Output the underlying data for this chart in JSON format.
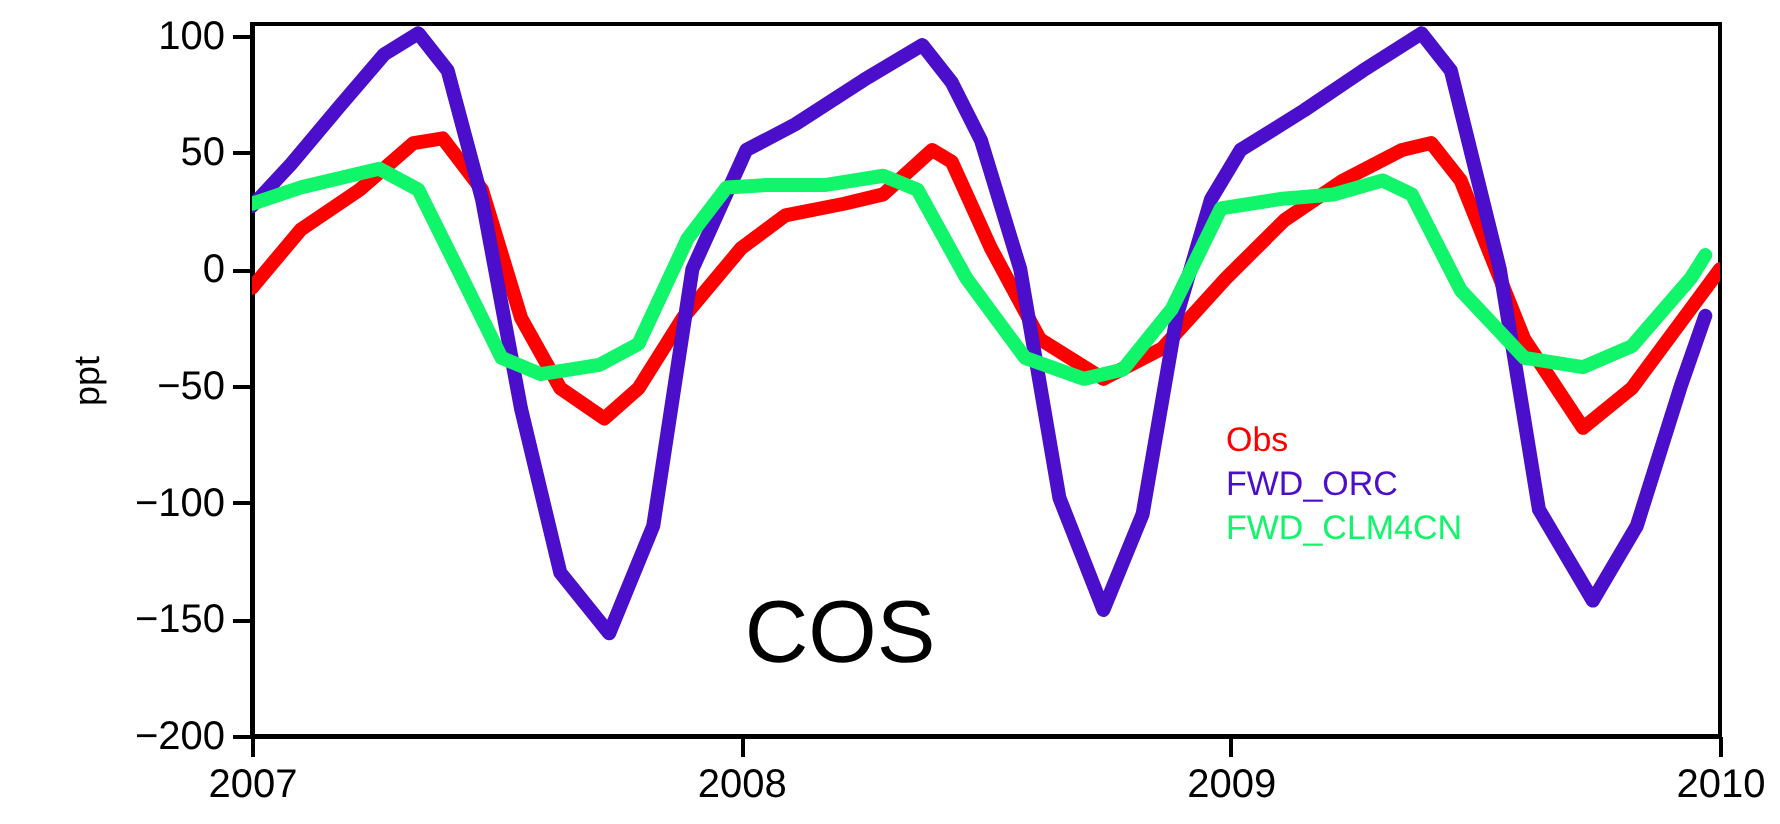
{
  "chart_data": {
    "type": "line",
    "ylabel": "ppt",
    "annotations": [
      "COS"
    ],
    "xlim": [
      2007,
      2010
    ],
    "xticks": [
      2007,
      2008,
      2009,
      2010
    ],
    "ylim": [
      -200,
      105
    ],
    "yticks": [
      -200,
      -150,
      -100,
      -50,
      0,
      50,
      100
    ],
    "grid": false,
    "legend": "right",
    "line_style": "solid",
    "series": [
      {
        "name": "Obs",
        "color": "#ff0000",
        "x": [
          2007.0,
          2007.1,
          2007.22,
          2007.33,
          2007.39,
          2007.47,
          2007.55,
          2007.63,
          2007.72,
          2007.79,
          2007.88,
          2008.0,
          2008.09,
          2008.21,
          2008.29,
          2008.39,
          2008.43,
          2008.51,
          2008.61,
          2008.74,
          2008.86,
          2008.99,
          2009.11,
          2009.23,
          2009.35,
          2009.41,
          2009.47,
          2009.6,
          2009.72,
          2009.82,
          2009.94,
          2010.0
        ],
        "values": [
          -8,
          17,
          34,
          54,
          56,
          34,
          -21,
          -51,
          -64,
          -51,
          -21,
          9,
          23,
          28,
          32,
          51,
          46,
          9,
          -30,
          -47,
          -34,
          -4,
          21,
          38,
          51,
          54,
          38,
          -30,
          -68,
          -51,
          -17,
          0
        ]
      },
      {
        "name": "FWD_ORC",
        "color": "#4b0fcc",
        "x": [
          2007.0,
          2007.08,
          2007.18,
          2007.27,
          2007.34,
          2007.4,
          2007.47,
          2007.55,
          2007.63,
          2007.73,
          2007.82,
          2007.9,
          2008.01,
          2008.11,
          2008.25,
          2008.37,
          2008.43,
          2008.49,
          2008.57,
          2008.65,
          2008.74,
          2008.82,
          2008.89,
          2008.96,
          2009.02,
          2009.15,
          2009.27,
          2009.39,
          2009.45,
          2009.55,
          2009.63,
          2009.74,
          2009.83,
          2009.92,
          2009.97
        ],
        "values": [
          27,
          45,
          70,
          92,
          101,
          85,
          30,
          -60,
          -130,
          -156,
          -110,
          0,
          51,
          62,
          81,
          96,
          80,
          55,
          0,
          -98,
          -146,
          -105,
          -20,
          30,
          51,
          68,
          85,
          101,
          85,
          0,
          -103,
          -142,
          -110,
          -50,
          -20
        ]
      },
      {
        "name": "FWD_CLM4CN",
        "color": "#11f56a",
        "x": [
          2007.0,
          2007.1,
          2007.26,
          2007.34,
          2007.43,
          2007.51,
          2007.59,
          2007.71,
          2007.79,
          2007.89,
          2007.97,
          2008.05,
          2008.17,
          2008.29,
          2008.36,
          2008.46,
          2008.58,
          2008.7,
          2008.78,
          2008.88,
          2008.98,
          2009.1,
          2009.21,
          2009.31,
          2009.37,
          2009.47,
          2009.6,
          2009.72,
          2009.82,
          2009.94,
          2009.97
        ],
        "values": [
          28,
          35,
          43,
          34,
          -4,
          -38,
          -45,
          -41,
          -32,
          13,
          35,
          36,
          36,
          40,
          34,
          -4,
          -38,
          -47,
          -43,
          -17,
          26,
          30,
          32,
          38,
          32,
          -9,
          -38,
          -42,
          -33,
          -4,
          6
        ]
      }
    ]
  }
}
